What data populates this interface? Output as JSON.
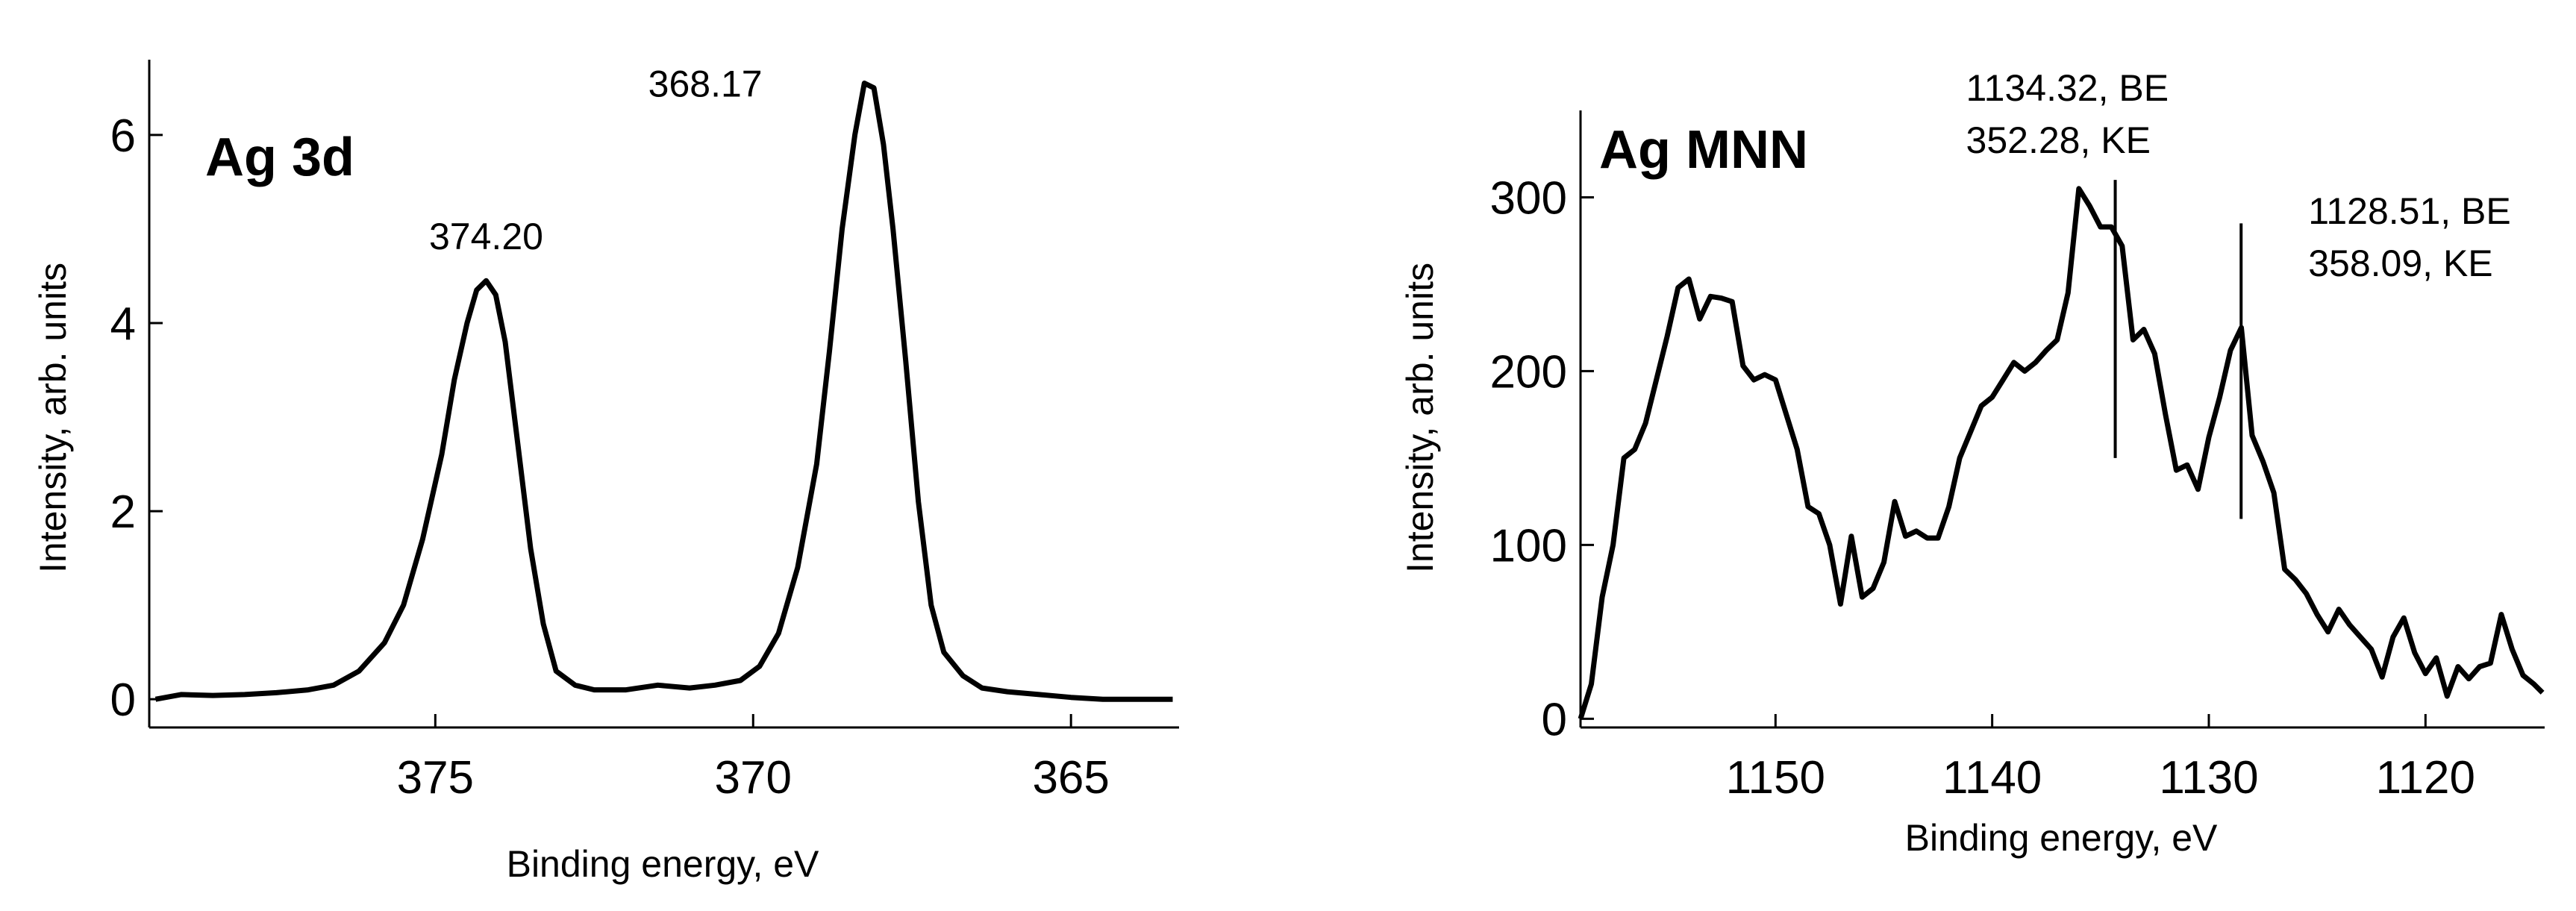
{
  "chart_data": [
    {
      "type": "line",
      "title": "Ag 3d",
      "xlabel": "Binding energy, eV",
      "ylabel": "Intensity, arb. units",
      "x_reversed": true,
      "xlim": [
        379.5,
        363.3
      ],
      "ylim": [
        -0.3,
        6.8
      ],
      "xticks": [
        375,
        370,
        365
      ],
      "yticks": [
        0,
        2,
        4,
        6
      ],
      "grid": false,
      "annotations": [
        {
          "text": "374.20",
          "x": 374.2,
          "y": 4.45
        },
        {
          "text": "368.17",
          "x": 368.17,
          "y": 6.55
        }
      ],
      "series": [
        {
          "x": [
            379.4,
            379.0,
            378.5,
            378.0,
            377.5,
            377.0,
            376.6,
            376.2,
            375.8,
            375.5,
            375.2,
            374.9,
            374.7,
            374.5,
            374.35,
            374.2,
            374.05,
            373.9,
            373.7,
            373.5,
            373.3,
            373.1,
            372.8,
            372.5,
            372.0,
            371.5,
            371.0,
            370.6,
            370.2,
            369.9,
            369.6,
            369.3,
            369.0,
            368.8,
            368.6,
            368.4,
            368.25,
            368.1,
            367.95,
            367.8,
            367.6,
            367.4,
            367.2,
            367.0,
            366.7,
            366.4,
            366.0,
            365.5,
            365.0,
            364.5,
            364.0,
            363.4
          ],
          "y": [
            0.0,
            0.05,
            0.04,
            0.05,
            0.07,
            0.1,
            0.15,
            0.3,
            0.6,
            1.0,
            1.7,
            2.6,
            3.4,
            4.0,
            4.35,
            4.45,
            4.3,
            3.8,
            2.7,
            1.6,
            0.8,
            0.3,
            0.15,
            0.1,
            0.1,
            0.15,
            0.12,
            0.15,
            0.2,
            0.35,
            0.7,
            1.4,
            2.5,
            3.7,
            5.0,
            6.0,
            6.55,
            6.5,
            5.9,
            5.0,
            3.6,
            2.1,
            1.0,
            0.5,
            0.25,
            0.12,
            0.08,
            0.05,
            0.02,
            0.0,
            0.0,
            0.0
          ]
        }
      ]
    },
    {
      "type": "line",
      "title": "Ag MNN",
      "xlabel": "Binding energy, eV",
      "ylabel": "Intensity, arb. units",
      "x_reversed": true,
      "xlim": [
        1159,
        1114.5
      ],
      "ylim": [
        -5,
        350
      ],
      "xticks": [
        1150,
        1140,
        1130,
        1120
      ],
      "yticks": [
        0,
        100,
        200,
        300
      ],
      "grid": false,
      "annotations": [
        {
          "lines": [
            "1134.32, BE",
            "352.28, KE"
          ],
          "x": 1134.32,
          "y_top": 310,
          "y_bottom": 150
        },
        {
          "lines": [
            "1128.51, BE",
            "358.09, KE"
          ],
          "x": 1128.51,
          "y_top": 285,
          "y_bottom": 115
        }
      ],
      "series": [
        {
          "x": [
            1159.0,
            1158.5,
            1158.0,
            1157.5,
            1157.0,
            1156.5,
            1156.0,
            1155.5,
            1155.0,
            1154.5,
            1154.0,
            1153.5,
            1153.0,
            1152.5,
            1152.0,
            1151.5,
            1151.0,
            1150.5,
            1150.0,
            1149.5,
            1149.0,
            1148.5,
            1148.0,
            1147.5,
            1147.0,
            1146.5,
            1146.0,
            1145.5,
            1145.0,
            1144.5,
            1144.0,
            1143.5,
            1143.0,
            1142.5,
            1142.0,
            1141.5,
            1141.0,
            1140.5,
            1140.0,
            1139.5,
            1139.0,
            1138.5,
            1138.0,
            1137.5,
            1137.0,
            1136.5,
            1136.0,
            1135.5,
            1135.0,
            1134.5,
            1134.0,
            1133.5,
            1133.0,
            1132.5,
            1132.0,
            1131.5,
            1131.0,
            1130.5,
            1130.0,
            1129.5,
            1129.0,
            1128.5,
            1128.0,
            1127.5,
            1127.0,
            1126.5,
            1126.0,
            1125.5,
            1125.0,
            1124.5,
            1124.0,
            1123.5,
            1123.0,
            1122.5,
            1122.0,
            1121.5,
            1121.0,
            1120.5,
            1120.0,
            1119.5,
            1119.0,
            1118.5,
            1118.0,
            1117.5,
            1117.0,
            1116.5,
            1116.0,
            1115.5,
            1115.0,
            1114.6
          ],
          "y": [
            0,
            20,
            70,
            100,
            150,
            155,
            170,
            195,
            220,
            248,
            253,
            230,
            243,
            242,
            240,
            203,
            195,
            198,
            195,
            175,
            155,
            122,
            118,
            100,
            66,
            105,
            70,
            75,
            90,
            125,
            105,
            108,
            104,
            104,
            122,
            150,
            165,
            180,
            185,
            195,
            205,
            200,
            205,
            212,
            218,
            245,
            305,
            295,
            283,
            283,
            272,
            218,
            224,
            210,
            175,
            143,
            146,
            132,
            162,
            185,
            212,
            225,
            163,
            148,
            130,
            86,
            80,
            72,
            60,
            50,
            63,
            54,
            47,
            40,
            24,
            47,
            58,
            38,
            26,
            35,
            13,
            30,
            23,
            30,
            32,
            60,
            40,
            25,
            20,
            15
          ]
        }
      ]
    }
  ]
}
